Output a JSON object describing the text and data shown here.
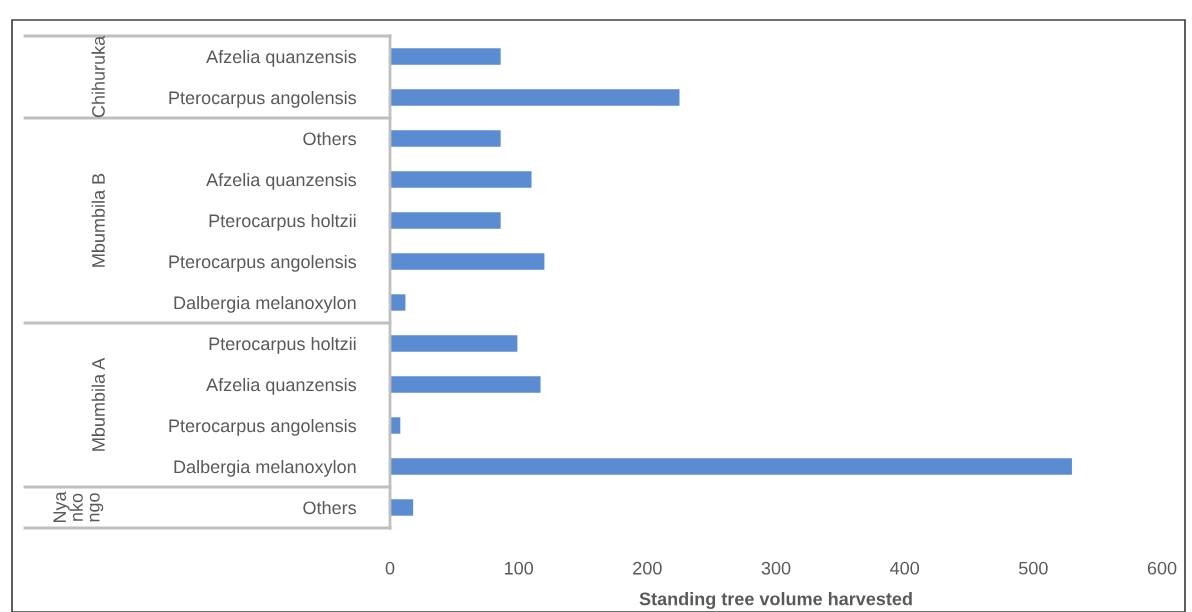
{
  "chart_data": {
    "type": "bar",
    "orientation": "horizontal",
    "xlabel": "Standing tree volume harvested",
    "categories": [
      "Afzelia quanzensis",
      "Pterocarpus angolensis",
      "Others",
      "Afzelia quanzensis",
      "Pterocarpus holtzii",
      "Pterocarpus angolensis",
      "Dalbergia melanoxylon",
      "Pterocarpus holtzii",
      "Afzelia quanzensis",
      "Pterocarpus angolensis",
      "Dalbergia melanoxylon",
      "Others"
    ],
    "values": [
      86,
      225,
      86,
      110,
      86,
      120,
      12,
      99,
      117,
      8,
      530,
      18
    ],
    "color": "#5b8bd0",
    "xlim": [
      0,
      600
    ],
    "xticks": [
      0,
      100,
      200,
      300,
      400,
      500,
      600
    ],
    "grid": false,
    "annotations": [
      "Chihuruka",
      "Mbumbila B",
      "Mbumbila A",
      "Nyankongo"
    ]
  }
}
